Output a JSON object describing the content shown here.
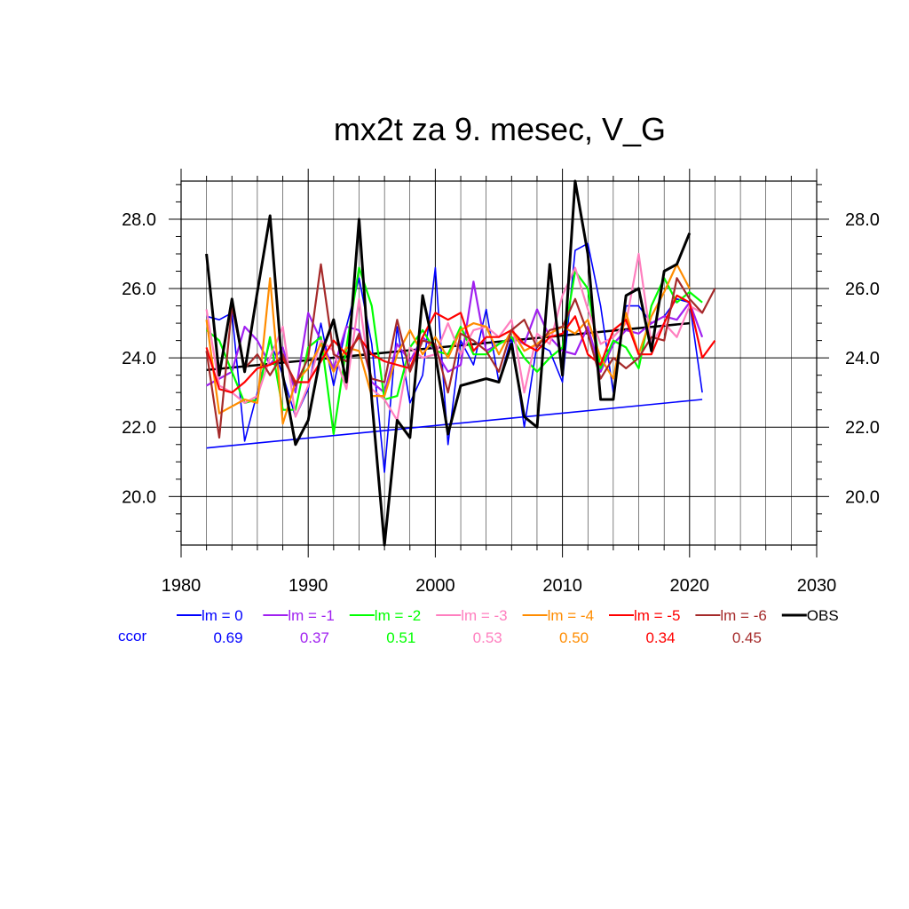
{
  "chart_data": {
    "type": "line",
    "title": "mx2t za 9. mesec, V_G",
    "xlabel": "",
    "ylabel": "",
    "xlim": [
      1980,
      2030
    ],
    "ylim": [
      18.6,
      29.1
    ],
    "x_ticks": [
      "1980",
      "1990",
      "2000",
      "2010",
      "2020",
      "2030"
    ],
    "y_ticks": [
      "20.0",
      "22.0",
      "24.0",
      "26.0",
      "28.0"
    ],
    "grid": true,
    "legend_position": "bottom",
    "ccor_label": "ccor",
    "years": [
      1982,
      1983,
      1984,
      1985,
      1986,
      1987,
      1988,
      1989,
      1990,
      1991,
      1992,
      1993,
      1994,
      1995,
      1996,
      1997,
      1998,
      1999,
      2000,
      2001,
      2002,
      2003,
      2004,
      2005,
      2006,
      2007,
      2008,
      2009,
      2010,
      2011,
      2012,
      2013,
      2014,
      2015,
      2016,
      2017,
      2018,
      2019,
      2020,
      2021,
      2022
    ],
    "series": [
      {
        "name": "lm = 0",
        "color": "#0000ff",
        "ccor": "0.69",
        "values": [
          25.2,
          25.1,
          25.3,
          21.6,
          23.0,
          24.5,
          23.5,
          22.3,
          23.1,
          25.0,
          23.2,
          24.9,
          26.3,
          24.4,
          20.7,
          24.9,
          22.7,
          23.5,
          26.6,
          21.5,
          24.5,
          23.8,
          25.4,
          23.3,
          24.6,
          22.0,
          24.4,
          24.2,
          23.3,
          27.1,
          27.3,
          25.5,
          23.0,
          25.5,
          25.5,
          25.0,
          25.2,
          25.7,
          25.6,
          23.0,
          null
        ]
      },
      {
        "name": "lm = -1",
        "color": "#a020f0",
        "ccor": "0.37",
        "values": [
          23.2,
          23.4,
          23.6,
          24.9,
          24.5,
          23.8,
          24.3,
          23.0,
          25.3,
          24.5,
          23.7,
          24.9,
          24.8,
          23.3,
          23.0,
          24.4,
          23.9,
          24.6,
          24.2,
          23.6,
          23.8,
          26.2,
          24.2,
          24.4,
          24.6,
          24.4,
          25.4,
          24.6,
          24.2,
          24.1,
          24.9,
          23.6,
          24.4,
          24.8,
          24.7,
          25.0,
          25.2,
          25.1,
          25.6,
          24.6,
          null
        ]
      },
      {
        "name": "lm = -2",
        "color": "#00ff00",
        "ccor": "0.51",
        "values": [
          24.8,
          24.5,
          23.6,
          22.7,
          22.8,
          24.6,
          22.5,
          22.5,
          24.3,
          24.6,
          21.8,
          24.3,
          26.6,
          25.5,
          22.8,
          22.9,
          24.3,
          24.8,
          24.2,
          24.1,
          24.9,
          24.1,
          24.1,
          24.4,
          24.6,
          24.0,
          23.6,
          24.0,
          24.3,
          26.5,
          26.0,
          23.7,
          24.5,
          24.3,
          23.7,
          25.5,
          26.3,
          25.6,
          25.9,
          25.6,
          null
        ]
      },
      {
        "name": "lm = -3",
        "color": "#ff7fbf",
        "ccor": "0.53",
        "values": [
          25.4,
          23.2,
          23.0,
          22.7,
          22.9,
          24.0,
          24.9,
          22.3,
          23.2,
          24.5,
          24.2,
          23.1,
          25.7,
          23.1,
          22.8,
          22.2,
          24.3,
          24.0,
          24.1,
          25.0,
          24.1,
          24.8,
          24.9,
          24.6,
          25.1,
          23.0,
          24.7,
          24.4,
          25.8,
          26.6,
          25.4,
          24.4,
          24.6,
          25.0,
          27.0,
          24.4,
          25.0,
          24.6,
          25.5,
          25.3,
          null
        ]
      },
      {
        "name": "lm = -4",
        "color": "#ff8c00",
        "ccor": "0.50",
        "values": [
          25.1,
          22.4,
          22.6,
          22.8,
          22.7,
          26.3,
          22.1,
          23.3,
          23.7,
          24.4,
          23.6,
          24.3,
          24.2,
          22.9,
          22.9,
          24.1,
          24.8,
          24.1,
          24.6,
          24.0,
          24.8,
          25.0,
          24.9,
          24.1,
          24.8,
          24.2,
          24.4,
          24.7,
          24.9,
          24.7,
          25.1,
          24.0,
          23.4,
          25.3,
          24.1,
          25.2,
          25.9,
          26.7,
          26.0,
          null,
          null
        ]
      },
      {
        "name": "lm = -5",
        "color": "#ff0000",
        "ccor": "0.34",
        "values": [
          24.3,
          23.1,
          23.0,
          23.3,
          23.7,
          23.8,
          24.0,
          23.3,
          23.3,
          23.9,
          24.5,
          24.1,
          24.6,
          24.1,
          23.9,
          23.8,
          23.7,
          24.6,
          25.3,
          25.1,
          25.3,
          24.2,
          24.6,
          24.6,
          24.8,
          24.4,
          24.2,
          24.6,
          24.7,
          25.2,
          24.1,
          23.8,
          24.8,
          25.1,
          24.1,
          24.1,
          25.0,
          25.8,
          25.6,
          24.0,
          24.5
        ]
      },
      {
        "name": "lm = -6",
        "color": "#a52a2a",
        "ccor": "0.45",
        "values": [
          24.2,
          21.7,
          25.5,
          23.7,
          24.1,
          23.5,
          24.1,
          23.2,
          24.0,
          26.7,
          24.1,
          23.9,
          24.7,
          23.4,
          23.3,
          25.1,
          23.6,
          24.5,
          24.4,
          23.0,
          24.7,
          24.5,
          24.2,
          23.6,
          24.8,
          25.1,
          24.3,
          24.8,
          24.9,
          25.7,
          24.7,
          23.4,
          24.0,
          23.7,
          24.0,
          24.6,
          24.5,
          26.3,
          25.7,
          25.3,
          26.0
        ]
      },
      {
        "name": "OBS",
        "color": "#000000",
        "ccor": "",
        "values": [
          27.0,
          23.5,
          25.7,
          23.6,
          25.9,
          28.1,
          23.5,
          21.5,
          22.2,
          24.1,
          25.1,
          23.3,
          28.0,
          22.8,
          18.6,
          22.2,
          21.7,
          25.8,
          24.1,
          21.8,
          23.2,
          23.3,
          23.4,
          23.3,
          24.4,
          22.3,
          22.0,
          26.7,
          23.5,
          29.1,
          27.0,
          22.8,
          22.8,
          25.8,
          26.0,
          24.2,
          26.5,
          26.7,
          27.6,
          null,
          null
        ]
      }
    ],
    "trendlines": [
      {
        "color": "#0000ff",
        "x": [
          1982,
          2021
        ],
        "y": [
          21.4,
          22.8
        ]
      },
      {
        "color": "#000000",
        "x": [
          1982,
          2020
        ],
        "y": [
          23.65,
          25.0
        ]
      }
    ]
  }
}
